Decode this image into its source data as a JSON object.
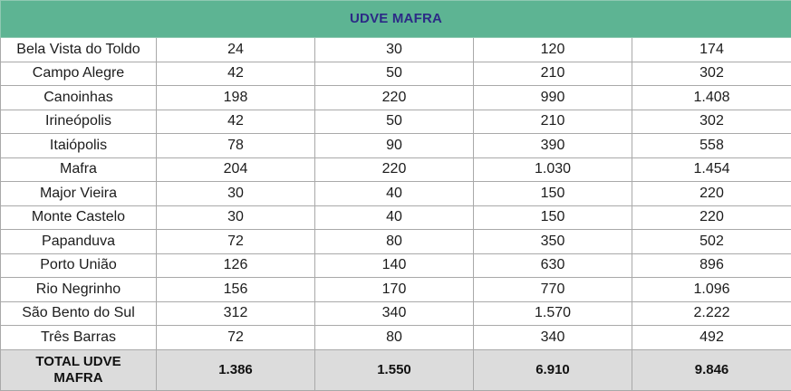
{
  "table": {
    "title": "UDVE MAFRA",
    "rows": [
      {
        "name": "Bela Vista do Toldo",
        "c1": "24",
        "c2": "30",
        "c3": "120",
        "c4": "174"
      },
      {
        "name": "Campo Alegre",
        "c1": "42",
        "c2": "50",
        "c3": "210",
        "c4": "302"
      },
      {
        "name": "Canoinhas",
        "c1": "198",
        "c2": "220",
        "c3": "990",
        "c4": "1.408"
      },
      {
        "name": "Irineópolis",
        "c1": "42",
        "c2": "50",
        "c3": "210",
        "c4": "302"
      },
      {
        "name": "Itaiópolis",
        "c1": "78",
        "c2": "90",
        "c3": "390",
        "c4": "558"
      },
      {
        "name": "Mafra",
        "c1": "204",
        "c2": "220",
        "c3": "1.030",
        "c4": "1.454"
      },
      {
        "name": "Major Vieira",
        "c1": "30",
        "c2": "40",
        "c3": "150",
        "c4": "220"
      },
      {
        "name": "Monte Castelo",
        "c1": "30",
        "c2": "40",
        "c3": "150",
        "c4": "220"
      },
      {
        "name": "Papanduva",
        "c1": "72",
        "c2": "80",
        "c3": "350",
        "c4": "502"
      },
      {
        "name": "Porto União",
        "c1": "126",
        "c2": "140",
        "c3": "630",
        "c4": "896"
      },
      {
        "name": "Rio Negrinho",
        "c1": "156",
        "c2": "170",
        "c3": "770",
        "c4": "1.096"
      },
      {
        "name": "São Bento do Sul",
        "c1": "312",
        "c2": "340",
        "c3": "1.570",
        "c4": "2.222"
      },
      {
        "name": "Três Barras",
        "c1": "72",
        "c2": "80",
        "c3": "340",
        "c4": "492"
      }
    ],
    "total": {
      "name_line1": "TOTAL UDVE",
      "name_line2": "MAFRA",
      "c1": "1.386",
      "c2": "1.550",
      "c3": "6.910",
      "c4": "9.846"
    }
  }
}
